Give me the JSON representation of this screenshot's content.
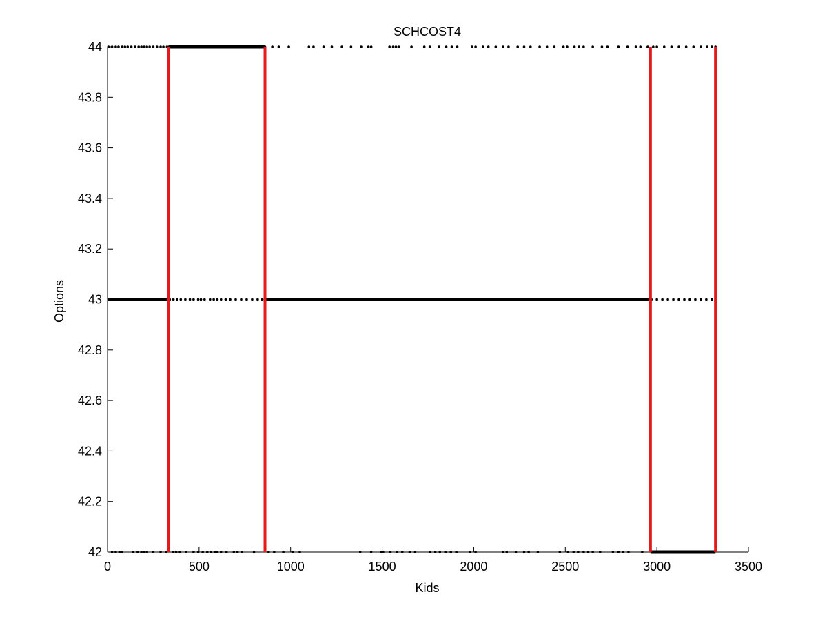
{
  "chart_data": {
    "type": "scatter",
    "title": "SCHCOST4",
    "xlabel": "Kids",
    "ylabel": "Options",
    "xlim": [
      0,
      3500
    ],
    "ylim": [
      42,
      44
    ],
    "xticks": [
      0,
      500,
      1000,
      1500,
      2000,
      2500,
      3000,
      3500
    ],
    "yticks": [
      42,
      42.2,
      42.4,
      42.6,
      42.8,
      43,
      43.2,
      43.4,
      43.6,
      43.8,
      44
    ],
    "xtick_labels": [
      "0",
      "500",
      "1000",
      "1500",
      "2000",
      "2500",
      "3000",
      "3500"
    ],
    "ytick_labels": [
      "42",
      "42.2",
      "42.4",
      "42.6",
      "42.8",
      "43",
      "43.2",
      "43.4",
      "43.6",
      "43.8",
      "44"
    ],
    "grid": false,
    "marker_color": "#000000",
    "line_color": "#e3191b",
    "series": [
      {
        "y": 44,
        "x": [
          5,
          25,
          45,
          60,
          80,
          95,
          110,
          130,
          150,
          170,
          185,
          200,
          215,
          230,
          250,
          270,
          290,
          305,
          325,
          335,
          860,
          900,
          935,
          990,
          1100,
          1125,
          1180,
          1225,
          1280,
          1330,
          1385,
          1425,
          1440,
          1540,
          1560,
          1575,
          1590,
          1660,
          1730,
          1760,
          1810,
          1850,
          1880,
          1910,
          1990,
          2010,
          2050,
          2080,
          2120,
          2160,
          2190,
          2240,
          2275,
          2310,
          2360,
          2400,
          2440,
          2490,
          2510,
          2550,
          2575,
          2600,
          2650,
          2700,
          2730,
          2790,
          2840,
          2885,
          2910,
          2950,
          2980,
          3000,
          3040,
          3080,
          3120,
          3160,
          3200,
          3240,
          3275,
          3300,
          3320
        ],
        "segments": [
          [
            335,
            860
          ]
        ]
      },
      {
        "y": 43,
        "x": [
          340,
          360,
          380,
          400,
          425,
          450,
          470,
          495,
          510,
          530,
          560,
          580,
          600,
          620,
          645,
          670,
          700,
          730,
          760,
          790,
          820,
          845,
          2970,
          3000,
          3030,
          3060,
          3090,
          3120,
          3150,
          3180,
          3210,
          3240,
          3270,
          3300,
          3320
        ],
        "segments": [
          [
            0,
            340
          ],
          [
            860,
            2965
          ]
        ]
      },
      {
        "y": 42,
        "x": [
          25,
          45,
          65,
          80,
          140,
          165,
          185,
          200,
          215,
          250,
          290,
          320,
          360,
          375,
          395,
          430,
          470,
          495,
          520,
          545,
          565,
          585,
          600,
          620,
          650,
          690,
          710,
          735,
          800,
          880,
          910,
          960,
          1010,
          1050,
          1380,
          1440,
          1495,
          1505,
          1545,
          1580,
          1610,
          1650,
          1680,
          1760,
          1790,
          1815,
          1845,
          1875,
          1905,
          1980,
          2010,
          2160,
          2180,
          2230,
          2275,
          2300,
          2350,
          2470,
          2515,
          2545,
          2570,
          2600,
          2625,
          2650,
          2690,
          2760,
          2790,
          2815,
          2845,
          2920
        ],
        "segments": [
          [
            2965,
            3320
          ]
        ]
      }
    ],
    "vertical_lines": [
      335,
      860,
      2965,
      3320
    ]
  }
}
